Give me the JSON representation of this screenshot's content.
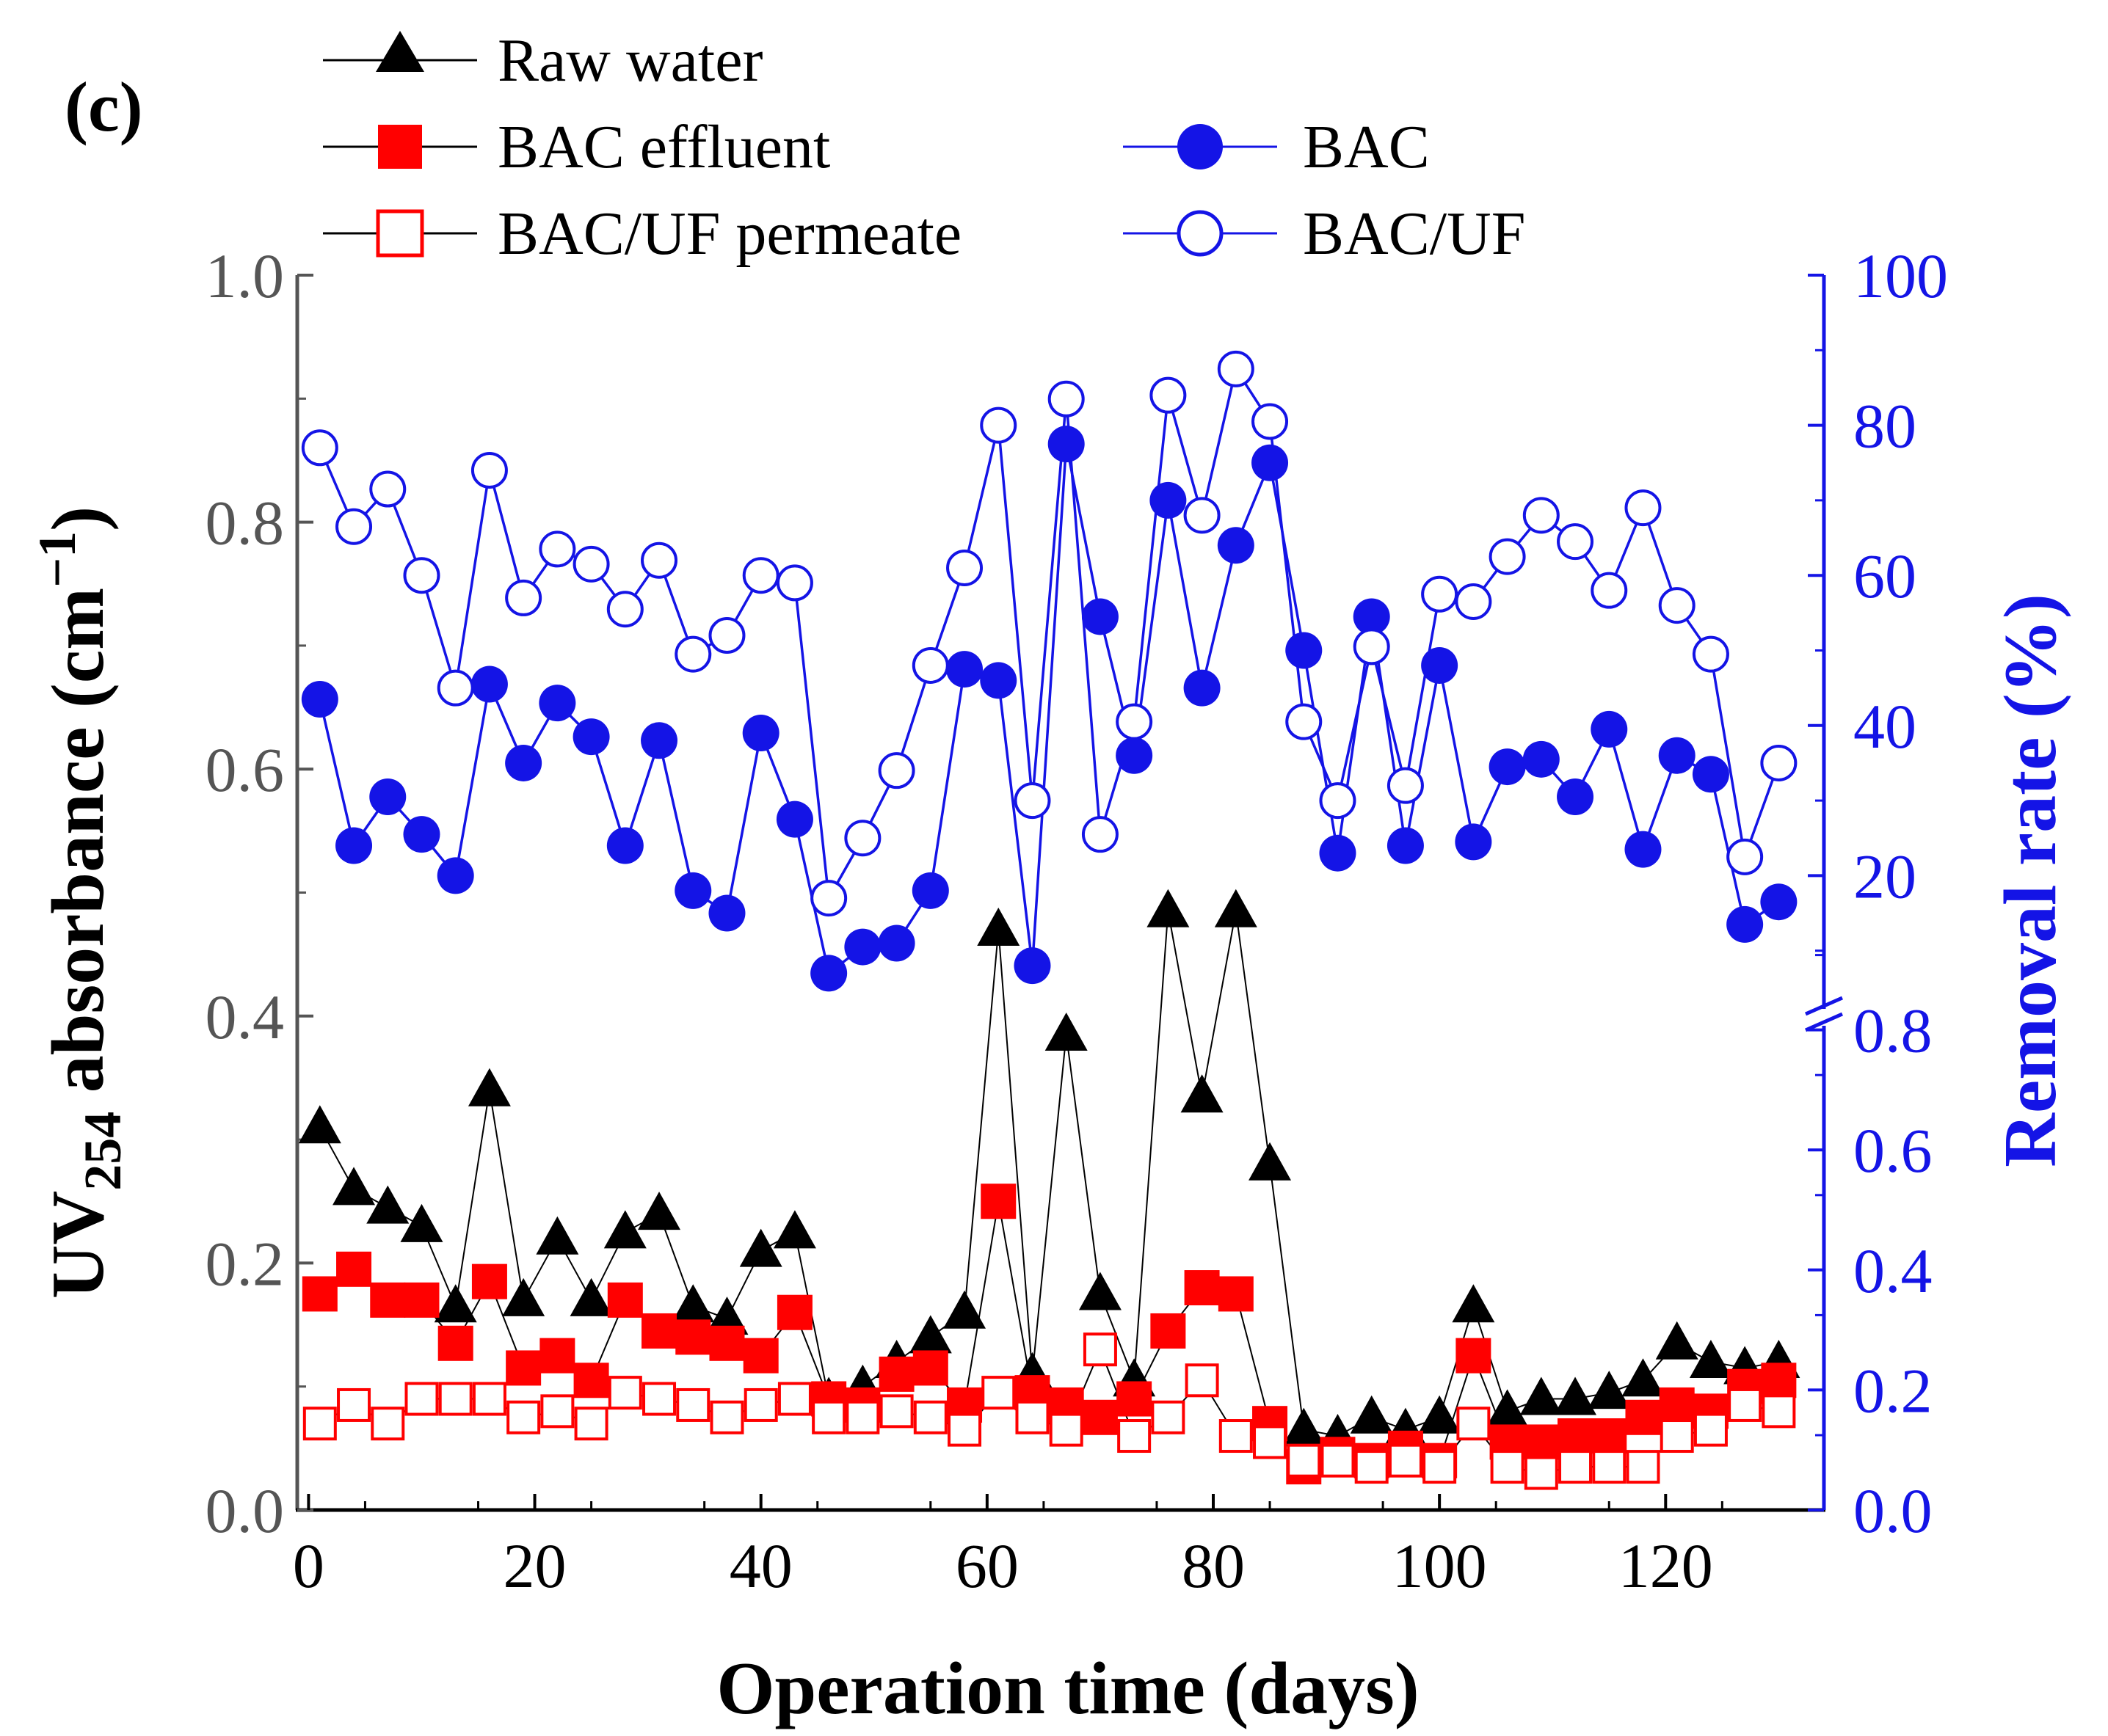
{
  "chart_data": {
    "type": "line",
    "panel_label": "(c)",
    "xlabel": "Operation time (days)",
    "ylabel_left": {
      "main": "UV",
      "sub": "254",
      "rest": " absorbance (cm",
      "sup": "−1",
      "end": ")"
    },
    "ylabel_right": "Removal rate (%)",
    "x_range": [
      -1,
      134
    ],
    "x_ticks": [
      "0",
      "20",
      "40",
      "60",
      "80",
      "100",
      "120"
    ],
    "x_tick_values": [
      0,
      20,
      40,
      60,
      80,
      100,
      120
    ],
    "y_left_range": [
      0,
      1.0
    ],
    "y_left_ticks": [
      "0.0",
      "0.2",
      "0.4",
      "0.6",
      "0.8",
      "1.0"
    ],
    "y_left_tick_values": [
      0,
      0.2,
      0.4,
      0.6,
      0.8,
      1.0
    ],
    "y_right_lower_ticks": [
      "0.0",
      "0.2",
      "0.4",
      "0.6",
      "0.8"
    ],
    "y_right_upper_ticks": [
      "20",
      "40",
      "60",
      "80",
      "100"
    ],
    "y_right_upper_tick_values": [
      20,
      40,
      60,
      80,
      100
    ],
    "colors": {
      "black": "#000000",
      "red": "#ff0000",
      "blue": "#1414e6",
      "grey": "#555555"
    },
    "x": [
      1,
      4,
      7,
      10,
      13,
      16,
      19,
      22,
      25,
      28,
      31,
      34,
      37,
      40,
      43,
      46,
      49,
      52,
      55,
      58,
      61,
      64,
      67,
      70,
      73,
      76,
      79,
      82,
      85,
      88,
      91,
      94,
      97,
      100,
      103,
      106,
      109,
      112,
      115,
      118,
      121,
      124,
      127,
      130
    ],
    "series": [
      {
        "name": "Raw water",
        "axis": "left",
        "marker": "filled-triangle",
        "values": [
          0.31,
          0.26,
          0.245,
          0.23,
          0.165,
          0.34,
          0.17,
          0.22,
          0.17,
          0.225,
          0.24,
          0.165,
          0.155,
          0.21,
          0.225,
          0.09,
          0.1,
          0.12,
          0.14,
          0.16,
          0.47,
          0.11,
          0.385,
          0.175,
          0.105,
          0.485,
          0.335,
          0.485,
          0.28,
          0.065,
          0.06,
          0.075,
          0.065,
          0.075,
          0.165,
          0.08,
          0.09,
          0.09,
          0.095,
          0.105,
          0.135,
          0.12,
          0.115,
          0.12
        ]
      },
      {
        "name": "BAC effluent",
        "axis": "left",
        "marker": "filled-square",
        "values": [
          0.175,
          0.195,
          0.17,
          0.17,
          0.135,
          0.185,
          0.115,
          0.125,
          0.105,
          0.17,
          0.145,
          0.14,
          0.135,
          0.125,
          0.16,
          0.09,
          0.085,
          0.11,
          0.115,
          0.085,
          0.25,
          0.095,
          0.085,
          0.075,
          0.09,
          0.145,
          0.18,
          0.175,
          0.07,
          0.035,
          0.045,
          0.04,
          0.05,
          0.04,
          0.125,
          0.055,
          0.055,
          0.06,
          0.06,
          0.075,
          0.085,
          0.08,
          0.1,
          0.105
        ]
      },
      {
        "name": "BAC/UF permeate",
        "axis": "left",
        "marker": "open-square",
        "values": [
          0.07,
          0.085,
          0.07,
          0.09,
          0.09,
          0.09,
          0.075,
          0.08,
          0.07,
          0.095,
          0.09,
          0.085,
          0.075,
          0.085,
          0.09,
          0.075,
          0.075,
          0.08,
          0.075,
          0.065,
          0.095,
          0.075,
          0.065,
          0.13,
          0.06,
          0.075,
          0.105,
          0.06,
          0.055,
          0.04,
          0.04,
          0.035,
          0.04,
          0.035,
          0.07,
          0.035,
          0.03,
          0.035,
          0.035,
          0.035,
          0.06,
          0.065,
          0.085,
          0.08
        ]
      },
      {
        "name": "BAC",
        "axis": "right",
        "marker": "filled-circle",
        "values": [
          43.5,
          24,
          30.5,
          25.5,
          20,
          45.5,
          35,
          43,
          38.5,
          24,
          38,
          18,
          15,
          39,
          27.5,
          7,
          10.5,
          11,
          18,
          47.5,
          46,
          8,
          77.5,
          54.5,
          36,
          70,
          45,
          64,
          75,
          50,
          23,
          54.5,
          24,
          48,
          24.5,
          34.5,
          35.5,
          30.5,
          39.5,
          23.5,
          36,
          33.5,
          13.5,
          16.5
        ]
      },
      {
        "name": "BAC/UF",
        "axis": "right",
        "marker": "open-circle",
        "values": [
          77,
          66.5,
          71.5,
          60,
          45,
          74,
          57,
          63.5,
          61.5,
          55.5,
          62,
          49.5,
          52,
          60,
          59,
          17,
          25,
          34,
          48,
          61,
          80,
          30,
          83.5,
          25.5,
          40.5,
          84,
          68,
          87.5,
          80.5,
          40.5,
          30,
          50.5,
          32,
          57.5,
          56.5,
          62.5,
          68,
          64.5,
          58,
          69,
          56,
          49.5,
          22.5,
          35
        ]
      }
    ]
  }
}
